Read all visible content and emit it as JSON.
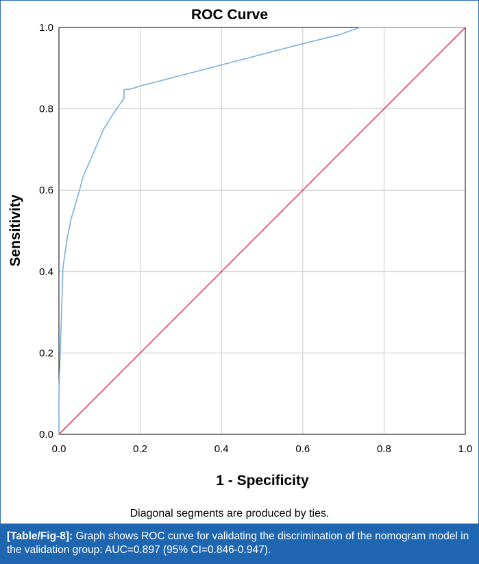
{
  "chart_data": {
    "type": "line",
    "title": "ROC Curve",
    "xlabel": "1 - Specificity",
    "ylabel": "Sensitivity",
    "xlim": [
      0.0,
      1.0
    ],
    "ylim": [
      0.0,
      1.0
    ],
    "x_ticks": [
      "0.0",
      "0.2",
      "0.4",
      "0.6",
      "0.8",
      "1.0"
    ],
    "y_ticks": [
      "0.0",
      "0.2",
      "0.4",
      "0.6",
      "0.8",
      "1.0"
    ],
    "grid": true,
    "footnote": "Diagonal segments are produced by ties.",
    "series": [
      {
        "color": "#7aaedf",
        "x": [
          0.0,
          0.0,
          0.01,
          0.02,
          0.03,
          0.045,
          0.06,
          0.08,
          0.11,
          0.135,
          0.16,
          0.16,
          0.165,
          0.175,
          0.2,
          0.4,
          0.6,
          0.69,
          0.74,
          0.8,
          1.0
        ],
        "y": [
          0.0,
          0.1,
          0.41,
          0.48,
          0.53,
          0.58,
          0.635,
          0.68,
          0.75,
          0.79,
          0.826,
          0.846,
          0.848,
          0.848,
          0.856,
          0.908,
          0.96,
          0.982,
          1.0,
          1.0,
          1.0
        ]
      },
      {
        "color": "#e0476a",
        "x": [
          0.0,
          1.0
        ],
        "y": [
          0.0,
          1.0
        ]
      }
    ]
  },
  "caption": {
    "tag": "[Table/Fig-8]:",
    "text": "Graph shows ROC curve for validating the discrimination of the nomogram model in the validation group: AUC=0.897 (95% CI=0.846-0.947)."
  },
  "colors": {
    "grid": "#c8c8c8",
    "caption_bg": "#1f66b1",
    "frame": "#2a6db0"
  }
}
